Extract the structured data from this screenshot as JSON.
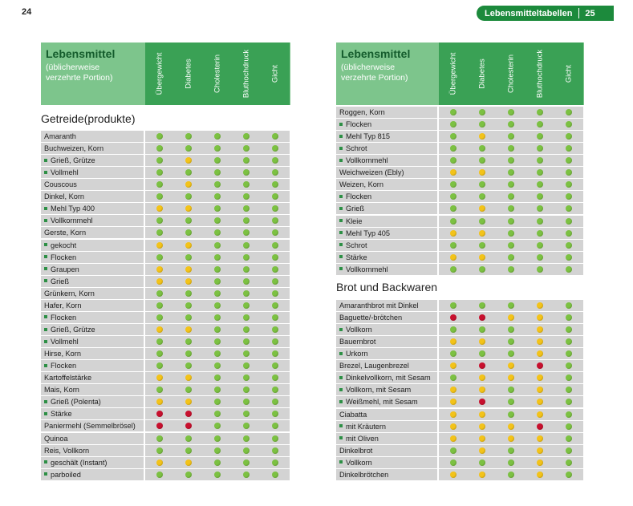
{
  "page": {
    "left_number": "24",
    "header_label": "Lebensmitteltabellen",
    "right_number": "25"
  },
  "colors": {
    "green": "#7cc142",
    "yellow": "#f3c319",
    "red": "#c8102e"
  },
  "table_header": {
    "title": "Lebensmittel",
    "subtitle_line1": "(üblicherweise",
    "subtitle_line2": "verzehrte Portion)",
    "columns": [
      "Übergewicht",
      "Diabetes",
      "Cholesterin",
      "Bluthochdruck",
      "Gicht"
    ]
  },
  "left_section_title": "Getreide(produkte)",
  "right_section_title": "Brot und Backwaren",
  "left_rows": [
    {
      "name": "Amaranth",
      "sub": false,
      "v": [
        "g",
        "g",
        "g",
        "g",
        "g"
      ]
    },
    {
      "name": "Buchweizen, Korn",
      "sub": false,
      "v": [
        "g",
        "g",
        "g",
        "g",
        "g"
      ]
    },
    {
      "name": "Grieß, Grütze",
      "sub": true,
      "v": [
        "g",
        "y",
        "g",
        "g",
        "g"
      ]
    },
    {
      "name": "Vollmehl",
      "sub": true,
      "v": [
        "g",
        "g",
        "g",
        "g",
        "g"
      ]
    },
    {
      "name": "Couscous",
      "sub": false,
      "v": [
        "g",
        "y",
        "g",
        "g",
        "g"
      ]
    },
    {
      "name": "Dinkel, Korn",
      "sub": false,
      "v": [
        "g",
        "g",
        "g",
        "g",
        "g"
      ]
    },
    {
      "name": "Mehl Typ 400",
      "sub": true,
      "v": [
        "y",
        "y",
        "g",
        "g",
        "g"
      ]
    },
    {
      "name": "Vollkornmehl",
      "sub": true,
      "v": [
        "g",
        "g",
        "g",
        "g",
        "g"
      ]
    },
    {
      "name": "Gerste, Korn",
      "sub": false,
      "v": [
        "g",
        "g",
        "g",
        "g",
        "g"
      ]
    },
    {
      "name": "gekocht",
      "sub": true,
      "v": [
        "y",
        "y",
        "g",
        "g",
        "g"
      ]
    },
    {
      "name": "Flocken",
      "sub": true,
      "v": [
        "g",
        "g",
        "g",
        "g",
        "g"
      ]
    },
    {
      "name": "Graupen",
      "sub": true,
      "v": [
        "y",
        "y",
        "g",
        "g",
        "g"
      ]
    },
    {
      "name": "Grieß",
      "sub": true,
      "v": [
        "y",
        "y",
        "g",
        "g",
        "g"
      ]
    },
    {
      "name": "Grünkern, Korn",
      "sub": false,
      "v": [
        "g",
        "g",
        "g",
        "g",
        "g"
      ]
    },
    {
      "name": "Hafer, Korn",
      "sub": false,
      "v": [
        "g",
        "g",
        "g",
        "g",
        "g"
      ]
    },
    {
      "name": "Flocken",
      "sub": true,
      "v": [
        "g",
        "g",
        "g",
        "g",
        "g"
      ]
    },
    {
      "name": "Grieß, Grütze",
      "sub": true,
      "v": [
        "y",
        "y",
        "g",
        "g",
        "g"
      ]
    },
    {
      "name": "Vollmehl",
      "sub": true,
      "v": [
        "g",
        "g",
        "g",
        "g",
        "g"
      ]
    },
    {
      "name": "Hirse, Korn",
      "sub": false,
      "v": [
        "g",
        "g",
        "g",
        "g",
        "g"
      ]
    },
    {
      "name": "Flocken",
      "sub": true,
      "v": [
        "g",
        "g",
        "g",
        "g",
        "g"
      ]
    },
    {
      "name": "Kartoffelstärke",
      "sub": false,
      "v": [
        "y",
        "y",
        "g",
        "g",
        "g"
      ]
    },
    {
      "name": "Mais, Korn",
      "sub": false,
      "v": [
        "g",
        "g",
        "g",
        "g",
        "g"
      ]
    },
    {
      "name": "Grieß (Polenta)",
      "sub": true,
      "v": [
        "y",
        "y",
        "g",
        "g",
        "g"
      ]
    },
    {
      "name": "Stärke",
      "sub": true,
      "v": [
        "r",
        "r",
        "g",
        "g",
        "g"
      ]
    },
    {
      "name": "Paniermehl (Semmelbrösel)",
      "sub": false,
      "v": [
        "r",
        "r",
        "g",
        "g",
        "g"
      ]
    },
    {
      "name": "Quinoa",
      "sub": false,
      "v": [
        "g",
        "g",
        "g",
        "g",
        "g"
      ]
    },
    {
      "name": "Reis, Vollkorn",
      "sub": false,
      "v": [
        "g",
        "g",
        "g",
        "g",
        "g"
      ]
    },
    {
      "name": "geschält (Instant)",
      "sub": true,
      "v": [
        "y",
        "y",
        "g",
        "g",
        "g"
      ]
    },
    {
      "name": "parboiled",
      "sub": true,
      "v": [
        "g",
        "g",
        "g",
        "g",
        "g"
      ]
    }
  ],
  "right_rows_a": [
    {
      "name": "Roggen, Korn",
      "sub": false,
      "v": [
        "g",
        "g",
        "g",
        "g",
        "g"
      ]
    },
    {
      "name": "Flocken",
      "sub": true,
      "v": [
        "g",
        "g",
        "g",
        "g",
        "g"
      ]
    },
    {
      "name": "Mehl Typ 815",
      "sub": true,
      "v": [
        "g",
        "y",
        "g",
        "g",
        "g"
      ]
    },
    {
      "name": "Schrot",
      "sub": true,
      "v": [
        "g",
        "g",
        "g",
        "g",
        "g"
      ]
    },
    {
      "name": "Vollkornmehl",
      "sub": true,
      "v": [
        "g",
        "g",
        "g",
        "g",
        "g"
      ]
    },
    {
      "name": "Weichweizen (Ebly)",
      "sub": false,
      "v": [
        "y",
        "y",
        "g",
        "g",
        "g"
      ]
    },
    {
      "name": "Weizen, Korn",
      "sub": false,
      "v": [
        "g",
        "g",
        "g",
        "g",
        "g"
      ]
    },
    {
      "name": "Flocken",
      "sub": true,
      "v": [
        "g",
        "g",
        "g",
        "g",
        "g"
      ]
    },
    {
      "name": "Grieß",
      "sub": true,
      "v": [
        "g",
        "y",
        "g",
        "g",
        "g"
      ]
    },
    {
      "name": "Kleie",
      "sub": true,
      "v": [
        "g",
        "g",
        "g",
        "g",
        "g"
      ]
    },
    {
      "name": "Mehl Typ 405",
      "sub": true,
      "v": [
        "y",
        "y",
        "g",
        "g",
        "g"
      ]
    },
    {
      "name": "Schrot",
      "sub": true,
      "v": [
        "g",
        "g",
        "g",
        "g",
        "g"
      ]
    },
    {
      "name": "Stärke",
      "sub": true,
      "v": [
        "y",
        "y",
        "g",
        "g",
        "g"
      ]
    },
    {
      "name": "Vollkornmehl",
      "sub": true,
      "v": [
        "g",
        "g",
        "g",
        "g",
        "g"
      ]
    }
  ],
  "right_rows_b": [
    {
      "name": "Amaranthbrot mit Dinkel",
      "sub": false,
      "v": [
        "g",
        "g",
        "g",
        "y",
        "g"
      ]
    },
    {
      "name": "Baguette/-brötchen",
      "sub": false,
      "v": [
        "r",
        "r",
        "y",
        "y",
        "g"
      ]
    },
    {
      "name": "Vollkorn",
      "sub": true,
      "v": [
        "g",
        "g",
        "g",
        "y",
        "g"
      ]
    },
    {
      "name": "Bauernbrot",
      "sub": false,
      "v": [
        "y",
        "y",
        "g",
        "y",
        "g"
      ]
    },
    {
      "name": "Urkorn",
      "sub": true,
      "v": [
        "g",
        "g",
        "g",
        "y",
        "g"
      ]
    },
    {
      "name": "Brezel, Laugenbrezel",
      "sub": false,
      "v": [
        "y",
        "r",
        "y",
        "r",
        "g"
      ]
    },
    {
      "name": "Dinkelvollkorn, mit Sesam",
      "sub": true,
      "v": [
        "g",
        "y",
        "y",
        "y",
        "g"
      ]
    },
    {
      "name": "Vollkorn, mit Sesam",
      "sub": true,
      "v": [
        "y",
        "y",
        "g",
        "y",
        "g"
      ]
    },
    {
      "name": "Weißmehl, mit Sesam",
      "sub": true,
      "v": [
        "y",
        "r",
        "g",
        "y",
        "g"
      ]
    },
    {
      "name": "Ciabatta",
      "sub": false,
      "v": [
        "y",
        "y",
        "g",
        "y",
        "g"
      ]
    },
    {
      "name": "mit Kräutern",
      "sub": true,
      "v": [
        "y",
        "y",
        "y",
        "r",
        "g"
      ]
    },
    {
      "name": "mit Oliven",
      "sub": true,
      "v": [
        "y",
        "y",
        "y",
        "y",
        "g"
      ]
    },
    {
      "name": "Dinkelbrot",
      "sub": false,
      "v": [
        "g",
        "y",
        "g",
        "y",
        "g"
      ]
    },
    {
      "name": "Vollkorn",
      "sub": true,
      "v": [
        "g",
        "g",
        "g",
        "y",
        "g"
      ]
    },
    {
      "name": "Dinkelbrötchen",
      "sub": false,
      "v": [
        "y",
        "y",
        "g",
        "y",
        "g"
      ]
    }
  ]
}
